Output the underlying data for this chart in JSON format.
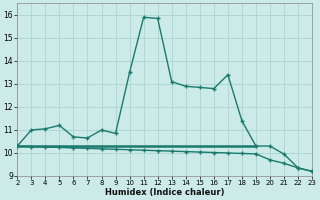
{
  "xlabel": "Humidex (Indice chaleur)",
  "bg_color": "#cceae7",
  "grid_color": "#aad4d0",
  "line_color": "#1a7a6e",
  "xlim": [
    2,
    23
  ],
  "ylim": [
    9,
    16.5
  ],
  "yticks": [
    9,
    10,
    11,
    12,
    13,
    14,
    15,
    16
  ],
  "xticks": [
    2,
    3,
    4,
    5,
    6,
    7,
    8,
    9,
    10,
    11,
    12,
    13,
    14,
    15,
    16,
    17,
    18,
    19,
    20,
    21,
    22,
    23
  ],
  "curve1_x": [
    2,
    3,
    4,
    5,
    6,
    7,
    8,
    9,
    10,
    11,
    12,
    13,
    14,
    15,
    16,
    17,
    18,
    19,
    20,
    21,
    22,
    23
  ],
  "curve1_y": [
    10.3,
    11.0,
    11.05,
    11.2,
    10.7,
    10.65,
    11.0,
    10.85,
    13.5,
    15.9,
    15.85,
    13.1,
    12.9,
    12.85,
    12.8,
    13.4,
    11.4,
    10.3,
    10.3,
    9.95,
    9.35,
    9.2
  ],
  "curve2_x": [
    2,
    3,
    4,
    5,
    6,
    7,
    8,
    9,
    10,
    11,
    12,
    13,
    14,
    15,
    16,
    17,
    18,
    19,
    20,
    21,
    22,
    23
  ],
  "curve2_y": [
    10.3,
    10.28,
    10.26,
    10.24,
    10.22,
    10.2,
    10.18,
    10.16,
    10.14,
    10.12,
    10.1,
    10.08,
    10.06,
    10.04,
    10.02,
    10.0,
    9.98,
    9.96,
    9.7,
    9.55,
    9.35,
    9.2
  ],
  "curve3_x": [
    2,
    19
  ],
  "curve3_y": [
    10.3,
    10.3
  ],
  "marker": "+",
  "markersize": 3.5,
  "linewidth": 1.0,
  "flat_linewidth": 1.8
}
